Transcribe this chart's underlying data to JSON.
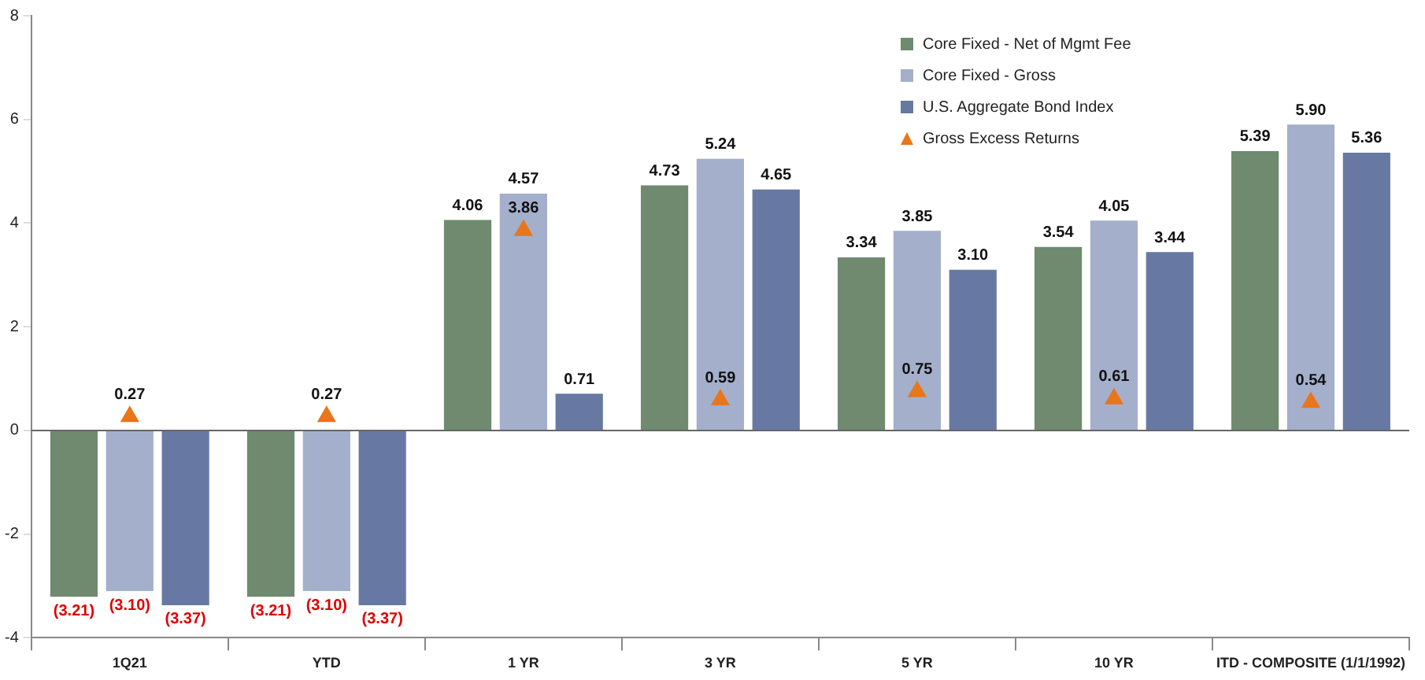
{
  "chart_data": {
    "type": "bar",
    "categories": [
      "1Q21",
      "YTD",
      "1 YR",
      "3 YR",
      "5 YR",
      "10 YR",
      "ITD - COMPOSITE (1/1/1992)"
    ],
    "ylim": [
      -4,
      8
    ],
    "ref_lines": [
      {
        "axis": "y",
        "value": 0,
        "color": "#666666"
      }
    ],
    "yticks": [
      -4,
      -2,
      0,
      2,
      4,
      6,
      8
    ],
    "grid": false,
    "legend": "top right",
    "series": [
      {
        "name": "Core Fixed - Net of Mgmt Fee",
        "color": "#6f8a6f",
        "values": [
          -3.21,
          -3.21,
          4.06,
          4.73,
          3.34,
          3.54,
          5.39
        ],
        "value_labels": [
          "(3.21)",
          "(3.21)",
          "4.06",
          "4.73",
          "3.34",
          "3.54",
          "5.39"
        ]
      },
      {
        "name": "Core Fixed - Gross",
        "color": "#a4afcc",
        "values": [
          -3.1,
          -3.1,
          4.57,
          5.24,
          3.85,
          4.05,
          5.9
        ],
        "value_labels": [
          "(3.10)",
          "(3.10)",
          "4.57",
          "5.24",
          "3.85",
          "4.05",
          "5.90"
        ]
      },
      {
        "name": "U.S. Aggregate Bond Index",
        "color": "#6779a3",
        "values": [
          -3.37,
          -3.37,
          0.71,
          4.65,
          3.1,
          3.44,
          5.36
        ],
        "value_labels": [
          "(3.37)",
          "(3.37)",
          "0.71",
          "4.65",
          "3.10",
          "3.44",
          "5.36"
        ]
      },
      {
        "name": "Gross Excess Returns",
        "type": "scatter",
        "marker": "triangle",
        "color": "#e8761a",
        "values": [
          0.27,
          0.27,
          3.86,
          0.59,
          0.75,
          0.61,
          0.54
        ],
        "value_labels": [
          "0.27",
          "0.27",
          "3.86",
          "0.59",
          "0.75",
          "0.61",
          "0.54"
        ]
      }
    ]
  }
}
